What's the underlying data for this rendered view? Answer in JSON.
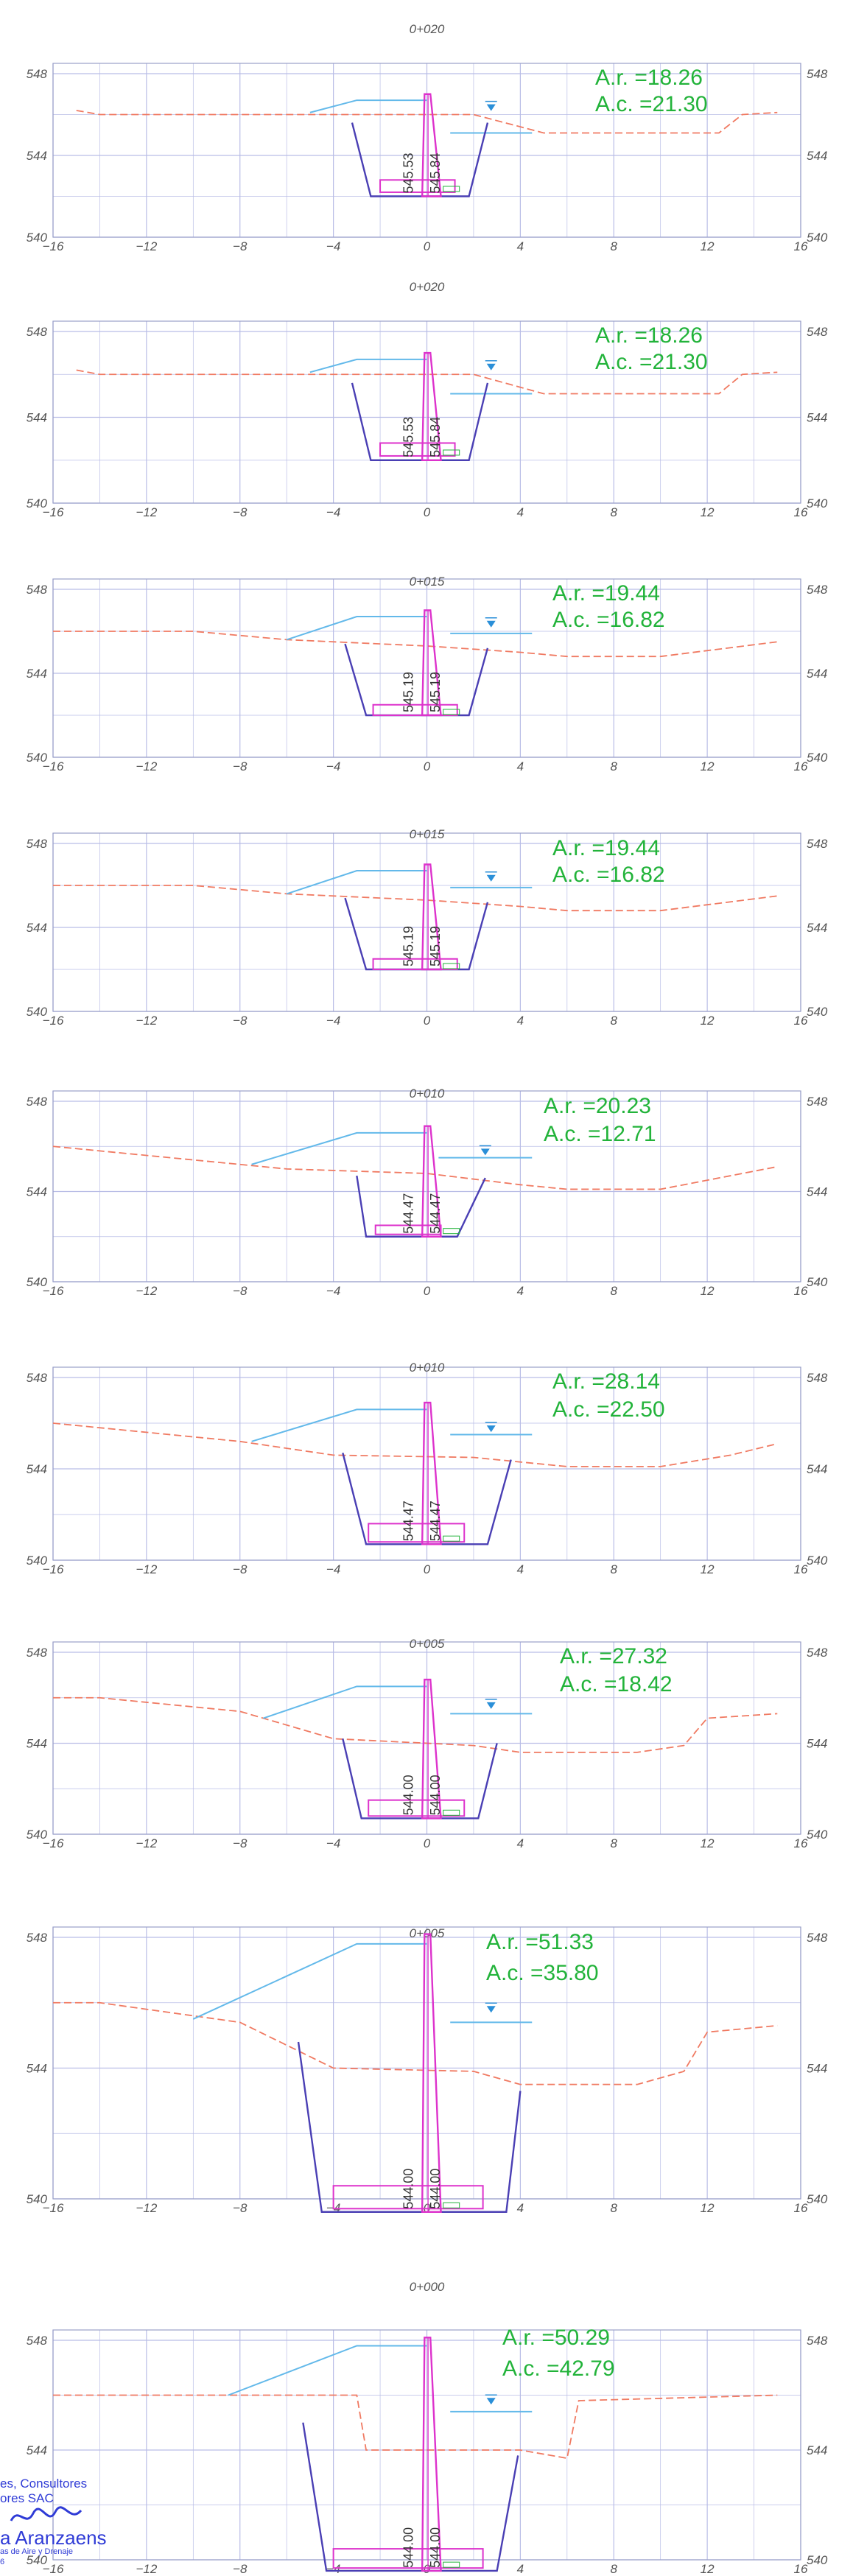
{
  "colors": {
    "grid": "#b9bde6",
    "frame": "#9aa0c8",
    "axis_text": "#555555",
    "terrain": "#f07a62",
    "design": "#63b9ea",
    "channel": "#4a3fb4",
    "pier": "#dd33cc",
    "area_text": "#22b33a",
    "water_marker": "#2a8fd8",
    "stamp": "#2f3bd6"
  },
  "sections": [
    {
      "station": "0+020",
      "x_ticks": [
        "−16",
        "−12",
        "−8",
        "−4",
        "0",
        "4",
        "8",
        "12",
        "16"
      ],
      "y_ticks": [
        "540",
        "544",
        "548"
      ],
      "ar": "A.r. =18.26",
      "ac": "A.c. =21.30",
      "vlabels": [
        "545.53",
        "545.84"
      ]
    },
    {
      "station": "0+020",
      "x_ticks": [
        "−16",
        "−12",
        "−8",
        "−4",
        "0",
        "4",
        "8",
        "12",
        "16"
      ],
      "y_ticks": [
        "540",
        "544",
        "548"
      ],
      "ar": "A.r. =18.26",
      "ac": "A.c. =21.30",
      "vlabels": [
        "545.53",
        "545.84"
      ]
    },
    {
      "station": "0+015",
      "x_ticks": [
        "−16",
        "−12",
        "−8",
        "−4",
        "0",
        "4",
        "8",
        "12",
        "16"
      ],
      "y_ticks": [
        "540",
        "544",
        "548"
      ],
      "ar": "A.r. =19.44",
      "ac": "A.c. =16.82",
      "vlabels": [
        "545.19",
        "545.19"
      ]
    },
    {
      "station": "0+015",
      "x_ticks": [
        "−16",
        "−12",
        "−8",
        "−4",
        "0",
        "4",
        "8",
        "12",
        "16"
      ],
      "y_ticks": [
        "540",
        "544",
        "548"
      ],
      "ar": "A.r. =19.44",
      "ac": "A.c. =16.82",
      "vlabels": [
        "545.19",
        "545.19"
      ]
    },
    {
      "station": "0+010",
      "x_ticks": [
        "−16",
        "−12",
        "−8",
        "−4",
        "0",
        "4",
        "8",
        "12",
        "16"
      ],
      "y_ticks": [
        "540",
        "544",
        "548"
      ],
      "ar": "A.r. =20.23",
      "ac": "A.c. =12.71",
      "vlabels": [
        "544.47",
        "544.47"
      ]
    },
    {
      "station": "0+010",
      "x_ticks": [
        "−16",
        "−12",
        "−8",
        "−4",
        "0",
        "4",
        "8",
        "12",
        "16"
      ],
      "y_ticks": [
        "540",
        "544",
        "548"
      ],
      "ar": "A.r. =28.14",
      "ac": "A.c. =22.50",
      "vlabels": [
        "544.47",
        "544.47"
      ]
    },
    {
      "station": "0+005",
      "x_ticks": [
        "−16",
        "−12",
        "−8",
        "−4",
        "0",
        "4",
        "8",
        "12",
        "16"
      ],
      "y_ticks": [
        "540",
        "544",
        "548"
      ],
      "ar": "A.r. =27.32",
      "ac": "A.c. =18.42",
      "vlabels": [
        "544.00",
        "544.00"
      ]
    },
    {
      "station": "0+005",
      "x_ticks": [
        "−16",
        "−12",
        "−8",
        "−4",
        "0",
        "4",
        "8",
        "12",
        "16"
      ],
      "y_ticks": [
        "540",
        "544",
        "548"
      ],
      "ar": "A.r. =51.33",
      "ac": "A.c. =35.80",
      "vlabels": [
        "544.00",
        "544.00"
      ]
    },
    {
      "station": "0+000",
      "x_ticks": [
        "−16",
        "−12",
        "−8",
        "−4",
        "0",
        "4",
        "8",
        "12",
        "16"
      ],
      "y_ticks": [
        "540",
        "544",
        "548"
      ],
      "ar": "A.r. =50.29",
      "ac": "A.c. =42.79",
      "vlabels": [
        "544.00",
        "544.00"
      ]
    }
  ],
  "stamp": {
    "line1": "es, Consultores",
    "line2": "ores SAC",
    "line3": "a Aranzaens",
    "line4": "as de Aire y Drenaje",
    "line5": "6"
  }
}
